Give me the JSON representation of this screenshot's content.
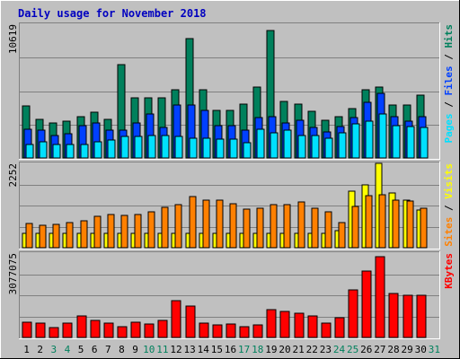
{
  "title": "Daily usage for November 2018",
  "colors": {
    "background": "#c0c0c0",
    "frame": "#808080",
    "hits": "#00805c",
    "files": "#0040ff",
    "pages": "#00e0ff",
    "visits": "#ffff00",
    "sites": "#ff8000",
    "kbytes": "#ff0000",
    "title": "#0000c0",
    "weekend_day": "#00805c",
    "weekday": "#000000"
  },
  "right_labels": {
    "top": [
      {
        "text": "Pages",
        "color": "#00e0ff"
      },
      {
        "text": " / ",
        "color": "#000000"
      },
      {
        "text": "Files",
        "color": "#0040ff"
      },
      {
        "text": " / ",
        "color": "#000000"
      },
      {
        "text": "Hits",
        "color": "#00805c"
      }
    ],
    "middle": [
      {
        "text": "Sites",
        "color": "#ff8000"
      },
      {
        "text": " / ",
        "color": "#000000"
      },
      {
        "text": "Visits",
        "color": "#ffff00"
      }
    ],
    "bottom": [
      {
        "text": "KBytes",
        "color": "#ff0000"
      }
    ]
  },
  "chart_data": {
    "type": "bar",
    "title": "Daily usage for November 2018",
    "days": [
      "1",
      "2",
      "3",
      "4",
      "5",
      "6",
      "7",
      "8",
      "9",
      "10",
      "11",
      "12",
      "13",
      "14",
      "15",
      "16",
      "17",
      "18",
      "19",
      "20",
      "21",
      "22",
      "23",
      "24",
      "25",
      "26",
      "27",
      "28",
      "29",
      "30",
      "31"
    ],
    "weekend_days": [
      "3",
      "4",
      "10",
      "11",
      "17",
      "18",
      "24",
      "25",
      "31"
    ],
    "panels": [
      {
        "id": "hits-files-pages",
        "ymax": 10619,
        "ymax_label": "10619",
        "series": [
          {
            "name": "Hits",
            "values": [
              4100,
              3100,
              2800,
              2900,
              3300,
              3600,
              3100,
              7400,
              4800,
              4800,
              4800,
              5400,
              9500,
              5400,
              3800,
              3800,
              4300,
              5600,
              10100,
              4500,
              4300,
              3700,
              3000,
              3300,
              3900,
              5400,
              5600,
              4200,
              4200,
              5000,
              0
            ]
          },
          {
            "name": "Files",
            "values": [
              2300,
              2200,
              1800,
              1900,
              2600,
              2800,
              2200,
              2200,
              2800,
              3500,
              2400,
              4200,
              4200,
              3800,
              2600,
              2600,
              2200,
              3200,
              3300,
              2800,
              3000,
              2400,
              2100,
              2500,
              3200,
              4400,
              5100,
              3300,
              2900,
              3300,
              0
            ]
          },
          {
            "name": "Pages",
            "values": [
              1100,
              1300,
              1100,
              1100,
              1100,
              1300,
              1400,
              1700,
              1700,
              1800,
              1800,
              1700,
              1600,
              1600,
              1500,
              1500,
              1200,
              2300,
              2000,
              2200,
              1800,
              1800,
              1600,
              2000,
              2700,
              2900,
              3500,
              2600,
              2500,
              2400,
              0
            ]
          }
        ]
      },
      {
        "id": "visits-sites",
        "ymax": 2252,
        "ymax_label": "2252",
        "series": [
          {
            "name": "Visits",
            "values": [
              380,
              380,
              380,
              380,
              380,
              380,
              380,
              380,
              380,
              380,
              380,
              380,
              380,
              380,
              380,
              380,
              380,
              380,
              380,
              380,
              380,
              380,
              380,
              450,
              1500,
              1680,
              2252,
              1470,
              1280,
              1000,
              0
            ]
          },
          {
            "name": "Sites",
            "values": [
              640,
              610,
              620,
              660,
              730,
              850,
              880,
              860,
              880,
              970,
              1080,
              1140,
              1370,
              1260,
              1270,
              1180,
              1040,
              1050,
              1140,
              1160,
              1230,
              1050,
              960,
              660,
              1110,
              1390,
              1420,
              1280,
              1240,
              1050,
              0
            ]
          }
        ]
      },
      {
        "id": "kbytes",
        "ymax": 3077075,
        "ymax_label": "3077075",
        "series": [
          {
            "name": "KBytes",
            "values": [
              550000,
              520000,
              370000,
              520000,
              780000,
              620000,
              530000,
              400000,
              550000,
              480000,
              620000,
              1330000,
              1130000,
              520000,
              460000,
              480000,
              380000,
              450000,
              1010000,
              940000,
              880000,
              780000,
              530000,
              710000,
              1730000,
              2410000,
              2960000,
              1620000,
              1540000,
              1530000,
              0
            ]
          }
        ]
      }
    ]
  }
}
